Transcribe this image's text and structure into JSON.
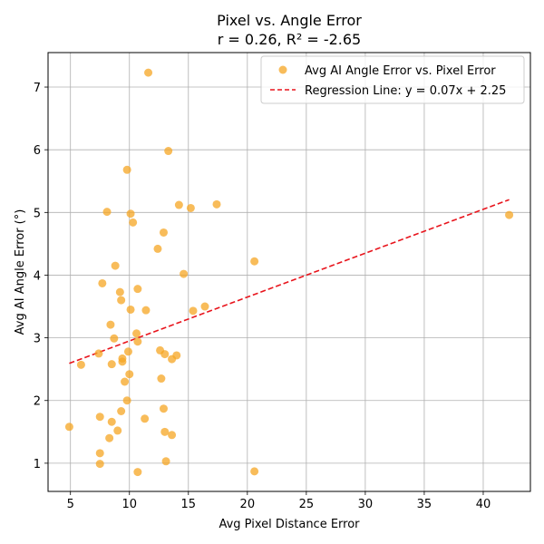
{
  "chart_data": {
    "type": "scatter",
    "title": "Pixel vs. Angle Error",
    "subtitle": "r = 0.26, R² = -2.65",
    "xlabel": "Avg Pixel Distance Error",
    "ylabel": "Avg AI Angle Error (°)",
    "xlim": [
      3.1,
      44.0
    ],
    "ylim": [
      0.55,
      7.55
    ],
    "xticks": [
      5,
      10,
      15,
      20,
      25,
      30,
      35,
      40
    ],
    "yticks": [
      1,
      2,
      3,
      4,
      5,
      6,
      7
    ],
    "grid": true,
    "legend_position": "top-right",
    "colors": {
      "points": "#f5a623",
      "regression": "#e8141c"
    },
    "series": [
      {
        "name": "Avg AI Angle Error vs. Pixel Error",
        "type": "scatter",
        "points": [
          [
            11.6,
            7.23
          ],
          [
            13.3,
            5.98
          ],
          [
            9.8,
            5.68
          ],
          [
            17.4,
            5.13
          ],
          [
            14.2,
            5.12
          ],
          [
            15.2,
            5.07
          ],
          [
            8.1,
            5.01
          ],
          [
            10.1,
            4.98
          ],
          [
            10.3,
            4.84
          ],
          [
            12.9,
            4.68
          ],
          [
            12.4,
            4.42
          ],
          [
            20.6,
            4.22
          ],
          [
            8.8,
            4.15
          ],
          [
            14.6,
            4.02
          ],
          [
            7.7,
            3.87
          ],
          [
            10.7,
            3.78
          ],
          [
            9.2,
            3.73
          ],
          [
            9.3,
            3.6
          ],
          [
            16.4,
            3.5
          ],
          [
            10.1,
            3.45
          ],
          [
            11.4,
            3.44
          ],
          [
            15.4,
            3.43
          ],
          [
            8.4,
            3.21
          ],
          [
            10.6,
            3.07
          ],
          [
            8.7,
            2.99
          ],
          [
            10.7,
            2.94
          ],
          [
            12.6,
            2.8
          ],
          [
            9.9,
            2.78
          ],
          [
            7.4,
            2.75
          ],
          [
            13.0,
            2.74
          ],
          [
            14.0,
            2.72
          ],
          [
            9.4,
            2.67
          ],
          [
            13.6,
            2.66
          ],
          [
            9.4,
            2.62
          ],
          [
            5.9,
            2.57
          ],
          [
            8.5,
            2.58
          ],
          [
            10.0,
            2.42
          ],
          [
            12.7,
            2.35
          ],
          [
            9.6,
            2.3
          ],
          [
            9.8,
            2.0
          ],
          [
            12.9,
            1.87
          ],
          [
            9.3,
            1.83
          ],
          [
            7.5,
            1.74
          ],
          [
            11.3,
            1.71
          ],
          [
            8.5,
            1.66
          ],
          [
            4.9,
            1.58
          ],
          [
            9.0,
            1.52
          ],
          [
            13.0,
            1.5
          ],
          [
            13.6,
            1.45
          ],
          [
            8.3,
            1.4
          ],
          [
            7.5,
            1.16
          ],
          [
            13.1,
            1.03
          ],
          [
            7.5,
            0.99
          ],
          [
            20.6,
            0.87
          ],
          [
            10.7,
            0.86
          ],
          [
            42.2,
            4.96
          ]
        ]
      },
      {
        "name": "Regression Line: y = 0.07x + 2.25",
        "type": "line",
        "slope": 0.07,
        "intercept": 2.25,
        "x_range": [
          4.9,
          42.2
        ]
      }
    ]
  }
}
